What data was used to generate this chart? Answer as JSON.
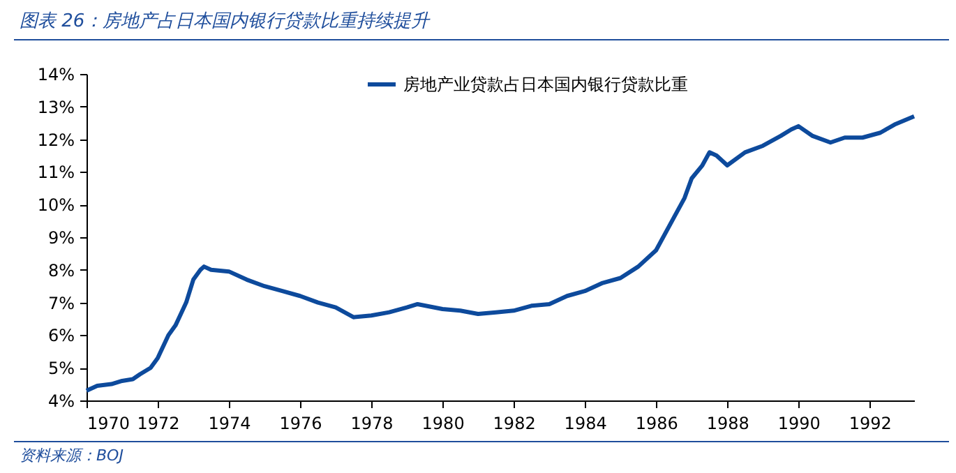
{
  "chart_data": {
    "type": "line",
    "title": "图表 26：房地产占日本国内银行贷款比重持续提升",
    "annotations": [
      "资料来源：BOJ"
    ],
    "x": [
      1970,
      1970.3,
      1970.7,
      1971,
      1971.3,
      1971.5,
      1971.8,
      1972,
      1972.3,
      1972.5,
      1972.8,
      1973,
      1973.2,
      1973.3,
      1973.5,
      1974,
      1974.5,
      1975,
      1975.5,
      1976,
      1976.5,
      1977,
      1977.5,
      1978,
      1978.5,
      1979,
      1979.3,
      1980,
      1980.5,
      1981,
      1981.5,
      1982,
      1982.5,
      1983,
      1983.5,
      1984,
      1984.5,
      1985,
      1985.5,
      1986,
      1986.5,
      1986.8,
      1987,
      1987.3,
      1987.5,
      1987.7,
      1988,
      1988.5,
      1989,
      1989.5,
      1989.8,
      1990,
      1990.4,
      1990.9,
      1991.3,
      1991.8,
      1992.3,
      1992.7,
      1993.25
    ],
    "series": [
      {
        "name": "房地产业贷款占日本国内银行贷款比重",
        "color": "#0d4a9c",
        "values": [
          4.3,
          4.45,
          4.5,
          4.6,
          4.65,
          4.8,
          5.0,
          5.3,
          6.0,
          6.3,
          7.0,
          7.7,
          8.0,
          8.1,
          8.0,
          7.95,
          7.7,
          7.5,
          7.35,
          7.2,
          7.0,
          6.85,
          6.55,
          6.6,
          6.7,
          6.85,
          6.95,
          6.8,
          6.75,
          6.65,
          6.7,
          6.75,
          6.9,
          6.95,
          7.2,
          7.35,
          7.6,
          7.75,
          8.1,
          8.6,
          9.6,
          10.2,
          10.8,
          11.2,
          11.6,
          11.5,
          11.2,
          11.6,
          11.8,
          12.1,
          12.3,
          12.4,
          12.1,
          11.9,
          12.05,
          12.05,
          12.2,
          12.45,
          12.7
        ]
      }
    ],
    "xlim": [
      1970,
      1993.25
    ],
    "xticks": [
      1970,
      1972,
      1974,
      1976,
      1978,
      1980,
      1982,
      1984,
      1986,
      1988,
      1990,
      1992
    ],
    "ylim": [
      4,
      14
    ],
    "yticks": [
      {
        "value": 4,
        "label": "4%"
      },
      {
        "value": 5,
        "label": "5%"
      },
      {
        "value": 6,
        "label": "6%"
      },
      {
        "value": 7,
        "label": "7%"
      },
      {
        "value": 8,
        "label": "8%"
      },
      {
        "value": 9,
        "label": "9%"
      },
      {
        "value": 10,
        "label": "10%"
      },
      {
        "value": 11,
        "label": "11%"
      },
      {
        "value": 12,
        "label": "12%"
      },
      {
        "value": 13,
        "label": "13%"
      },
      {
        "value": 14,
        "label": "14%"
      }
    ],
    "legend": "top",
    "grid": false,
    "marker": "none",
    "line_style": "solid"
  }
}
